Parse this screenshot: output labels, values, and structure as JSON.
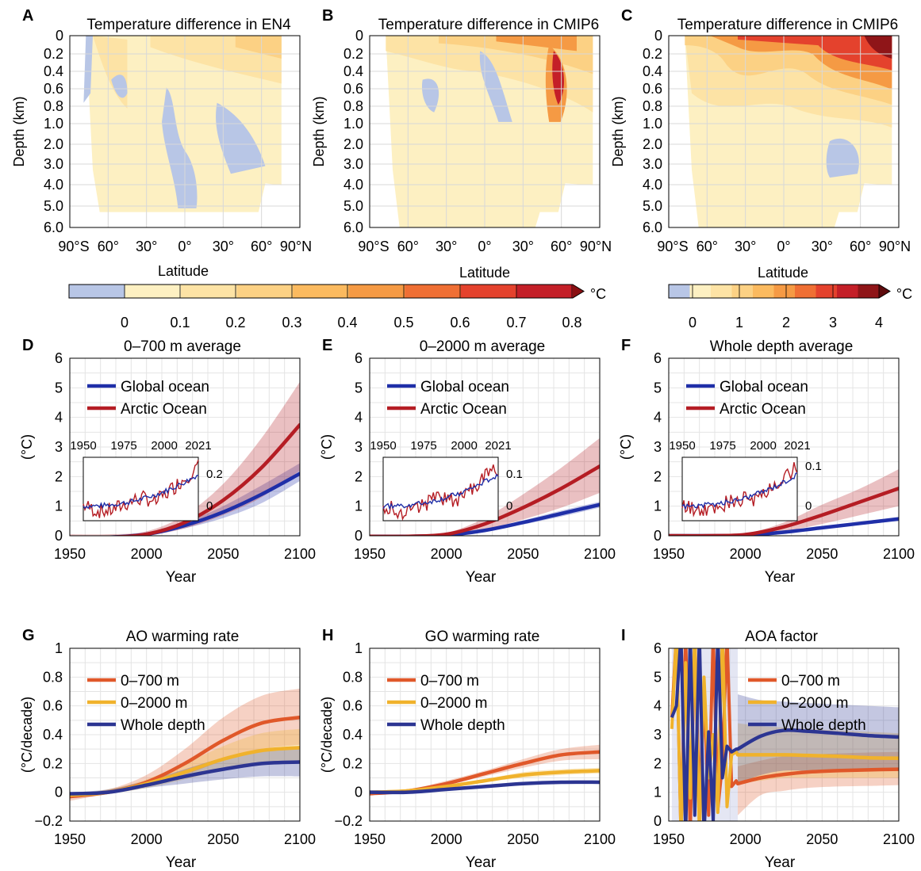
{
  "depth_panels": [
    {
      "letter": "A",
      "title": "Temperature difference in EN4",
      "ylabel": "Depth (km)",
      "xlabel": "Latitude",
      "depth_ticks": [
        "0",
        "0.2",
        "0.4",
        "0.6",
        "0.8",
        "1.0",
        "2.0",
        "3.0",
        "4.0",
        "5.0",
        "6.0"
      ],
      "lat_ticks": [
        "90°S",
        "60°",
        "30°",
        "0°",
        "30°",
        "60°",
        "90°N"
      ]
    },
    {
      "letter": "B",
      "title": "Temperature difference in CMIP6",
      "ylabel": "Depth (km)",
      "xlabel": "Latitude",
      "depth_ticks": [
        "0",
        "0.2",
        "0.4",
        "0.6",
        "0.8",
        "1.0",
        "2.0",
        "3.0",
        "4.0",
        "5.0",
        "6.0"
      ],
      "lat_ticks": [
        "90°S",
        "60°",
        "30°",
        "0°",
        "30°",
        "60°",
        "90°N"
      ]
    },
    {
      "letter": "C",
      "title": "Temperature difference in CMIP6",
      "ylabel": "Depth (km)",
      "xlabel": "Latitude",
      "depth_ticks": [
        "0",
        "0.2",
        "0.4",
        "0.6",
        "0.8",
        "1.0",
        "2.0",
        "3.0",
        "4.0",
        "5.0",
        "6.0"
      ],
      "lat_ticks": [
        "90°S",
        "60°",
        "30°",
        "0°",
        "30°",
        "60°",
        "90°N"
      ]
    }
  ],
  "colorbars": [
    {
      "unit": "°C",
      "ticks": [
        "0",
        "0.1",
        "0.2",
        "0.3",
        "0.4",
        "0.5",
        "0.6",
        "0.7",
        "0.8"
      ],
      "colors": [
        "#b8c6e6",
        "#fdf0c2",
        "#fde3a5",
        "#fcd184",
        "#fbba5f",
        "#f59a44",
        "#ef6f34",
        "#e4422d",
        "#c41f28"
      ],
      "arrow": "#8a0f12"
    },
    {
      "unit": "°C",
      "ticks": [
        "0",
        "1",
        "2",
        "3",
        "4"
      ],
      "colors": [
        "#b8c6e6",
        "#fdf0c2",
        "#fde3a5",
        "#fcd184",
        "#fbba5f",
        "#f59a44",
        "#ef6f34",
        "#e4422d",
        "#c41f28",
        "#8f1518"
      ],
      "arrow": "#5e0b0d"
    }
  ],
  "colors": {
    "global": "#1f2fa8",
    "arctic": "#b51d24",
    "d700": "#e0582a",
    "d2000": "#f0b22c",
    "whole": "#2c3592"
  },
  "chart_data": [
    {
      "type": "line",
      "letter": "D",
      "title": "0–700 m average",
      "xlabel": "Year",
      "ylabel": "(°C)",
      "xlim": [
        1950,
        2100
      ],
      "ylim": [
        0,
        6
      ],
      "xticks": [
        "1950",
        "2000",
        "2050",
        "2100"
      ],
      "yticks": [
        "0",
        "1",
        "2",
        "3",
        "4",
        "5",
        "6"
      ],
      "x": [
        1950,
        1975,
        2000,
        2025,
        2050,
        2075,
        2100
      ],
      "series": [
        {
          "name": "Global ocean",
          "values": [
            -0.05,
            -0.05,
            0.05,
            0.35,
            0.8,
            1.4,
            2.1
          ],
          "lower": [
            -0.08,
            -0.08,
            0.0,
            0.25,
            0.6,
            1.1,
            1.85
          ],
          "upper": [
            0.0,
            0.0,
            0.12,
            0.45,
            1.0,
            1.7,
            2.45
          ]
        },
        {
          "name": "Arctic Ocean",
          "values": [
            -0.05,
            -0.05,
            0.05,
            0.45,
            1.2,
            2.3,
            3.75
          ],
          "lower": [
            -0.1,
            -0.1,
            0.0,
            0.25,
            0.7,
            1.3,
            2.2
          ],
          "upper": [
            0.05,
            0.05,
            0.15,
            0.7,
            1.75,
            3.3,
            5.2
          ]
        }
      ],
      "inset": {
        "xticks": [
          "1950",
          "1975",
          "2000",
          "2021"
        ],
        "yticks": [
          "0.2",
          "0"
        ],
        "ymax": 0.3,
        "ymin": -0.1
      }
    },
    {
      "type": "line",
      "letter": "E",
      "title": "0–2000 m average",
      "xlabel": "Year",
      "ylabel": "(°C)",
      "xlim": [
        1950,
        2100
      ],
      "ylim": [
        0,
        6
      ],
      "xticks": [
        "1950",
        "2000",
        "2050",
        "2100"
      ],
      "yticks": [
        "0",
        "1",
        "2",
        "3",
        "4",
        "5",
        "6"
      ],
      "x": [
        1950,
        1975,
        2000,
        2025,
        2050,
        2075,
        2100
      ],
      "series": [
        {
          "name": "Global ocean",
          "values": [
            -0.02,
            -0.02,
            0.02,
            0.18,
            0.45,
            0.75,
            1.05
          ],
          "lower": [
            -0.04,
            -0.04,
            0.0,
            0.13,
            0.38,
            0.65,
            0.95
          ],
          "upper": [
            0.0,
            0.0,
            0.05,
            0.22,
            0.52,
            0.85,
            1.15
          ]
        },
        {
          "name": "Arctic Ocean",
          "values": [
            -0.02,
            -0.02,
            0.05,
            0.4,
            0.95,
            1.6,
            2.35
          ],
          "lower": [
            -0.04,
            -0.04,
            0.0,
            0.2,
            0.55,
            0.95,
            1.45
          ],
          "upper": [
            0.02,
            0.02,
            0.1,
            0.6,
            1.4,
            2.3,
            3.3
          ]
        }
      ],
      "inset": {
        "xticks": [
          "1950",
          "1975",
          "2000",
          "2021"
        ],
        "yticks": [
          "0.1",
          "0"
        ],
        "ymax": 0.15,
        "ymin": -0.05
      }
    },
    {
      "type": "line",
      "letter": "F",
      "title": "Whole depth average",
      "xlabel": "Year",
      "ylabel": "(°C)",
      "xlim": [
        1950,
        2100
      ],
      "ylim": [
        0,
        6
      ],
      "xticks": [
        "1950",
        "2000",
        "2050",
        "2100"
      ],
      "yticks": [
        "0",
        "1",
        "2",
        "3",
        "4",
        "5",
        "6"
      ],
      "x": [
        1950,
        1975,
        2000,
        2025,
        2050,
        2075,
        2100
      ],
      "series": [
        {
          "name": "Global ocean",
          "values": [
            0.0,
            0.0,
            0.02,
            0.12,
            0.27,
            0.42,
            0.57
          ],
          "lower": [
            -0.01,
            -0.01,
            0.0,
            0.1,
            0.23,
            0.37,
            0.5
          ],
          "upper": [
            0.01,
            0.01,
            0.03,
            0.15,
            0.31,
            0.47,
            0.64
          ]
        },
        {
          "name": "Arctic Ocean",
          "values": [
            0.0,
            0.0,
            0.04,
            0.3,
            0.7,
            1.15,
            1.6
          ],
          "lower": [
            -0.02,
            -0.02,
            0.0,
            0.15,
            0.4,
            0.7,
            1.0
          ],
          "upper": [
            0.02,
            0.02,
            0.08,
            0.45,
            1.05,
            1.6,
            2.25
          ]
        }
      ],
      "inset": {
        "xticks": [
          "1950",
          "1975",
          "2000",
          "2021"
        ],
        "yticks": [
          "0.1",
          "0"
        ],
        "ymax": 0.12,
        "ymin": -0.04
      }
    },
    {
      "type": "line",
      "letter": "G",
      "title": "AO warming rate",
      "xlabel": "Year",
      "ylabel": "(°C/decade)",
      "xlim": [
        1950,
        2100
      ],
      "ylim": [
        -0.2,
        1
      ],
      "xticks": [
        "1950",
        "2000",
        "2050",
        "2100"
      ],
      "yticks": [
        "−0.2",
        "0",
        "0.2",
        "0.4",
        "0.6",
        "0.8",
        "1"
      ],
      "x": [
        1950,
        1975,
        2000,
        2025,
        2050,
        2075,
        2100
      ],
      "series": [
        {
          "name": "0–700 m",
          "values": [
            -0.03,
            0.0,
            0.07,
            0.2,
            0.36,
            0.48,
            0.52
          ],
          "lower": [
            -0.06,
            -0.01,
            0.04,
            0.12,
            0.22,
            0.3,
            0.33
          ],
          "upper": [
            -0.01,
            0.02,
            0.12,
            0.3,
            0.52,
            0.67,
            0.72
          ]
        },
        {
          "name": "0–2000 m",
          "values": [
            -0.02,
            0.0,
            0.06,
            0.14,
            0.23,
            0.29,
            0.31
          ],
          "lower": [
            -0.03,
            -0.01,
            0.03,
            0.09,
            0.15,
            0.19,
            0.2
          ],
          "upper": [
            -0.01,
            0.02,
            0.09,
            0.2,
            0.32,
            0.41,
            0.44
          ]
        },
        {
          "name": "Whole depth",
          "values": [
            -0.01,
            0.0,
            0.05,
            0.11,
            0.16,
            0.2,
            0.21
          ],
          "lower": [
            -0.02,
            -0.01,
            0.03,
            0.06,
            0.09,
            0.11,
            0.11
          ],
          "upper": [
            0.0,
            0.02,
            0.08,
            0.16,
            0.24,
            0.29,
            0.3
          ]
        }
      ]
    },
    {
      "type": "line",
      "letter": "H",
      "title": "GO warming rate",
      "xlabel": "Year",
      "ylabel": "(°C/decade)",
      "xlim": [
        1950,
        2100
      ],
      "ylim": [
        -0.2,
        1
      ],
      "xticks": [
        "1950",
        "2000",
        "2050",
        "2100"
      ],
      "yticks": [
        "−0.2",
        "0",
        "0.2",
        "0.4",
        "0.6",
        "0.8",
        "1"
      ],
      "x": [
        1950,
        1975,
        2000,
        2025,
        2050,
        2075,
        2100
      ],
      "series": [
        {
          "name": "0–700 m",
          "values": [
            -0.01,
            0.01,
            0.06,
            0.13,
            0.2,
            0.26,
            0.28
          ],
          "lower": [
            -0.02,
            0.0,
            0.05,
            0.11,
            0.17,
            0.22,
            0.23
          ],
          "upper": [
            0.0,
            0.02,
            0.08,
            0.15,
            0.23,
            0.3,
            0.33
          ]
        },
        {
          "name": "0–2000 m",
          "values": [
            0.0,
            0.01,
            0.04,
            0.08,
            0.12,
            0.14,
            0.15
          ],
          "lower": [
            -0.01,
            0.0,
            0.03,
            0.07,
            0.1,
            0.12,
            0.13
          ],
          "upper": [
            0.0,
            0.02,
            0.05,
            0.09,
            0.14,
            0.16,
            0.17
          ]
        },
        {
          "name": "Whole depth",
          "values": [
            0.0,
            0.0,
            0.02,
            0.04,
            0.06,
            0.07,
            0.07
          ],
          "lower": [
            0.0,
            0.0,
            0.01,
            0.03,
            0.05,
            0.06,
            0.06
          ],
          "upper": [
            0.0,
            0.01,
            0.03,
            0.05,
            0.07,
            0.08,
            0.08
          ]
        }
      ]
    },
    {
      "type": "line",
      "letter": "I",
      "title": "AOA factor",
      "xlabel": "Year",
      "ylabel": "",
      "xlim": [
        1950,
        2100
      ],
      "ylim": [
        0,
        6
      ],
      "xticks": [
        "1950",
        "2000",
        "2050",
        "2100"
      ],
      "yticks": [
        "0",
        "1",
        "2",
        "3",
        "4",
        "5",
        "6"
      ],
      "x": [
        1995,
        2010,
        2025,
        2040,
        2060,
        2080,
        2100
      ],
      "series": [
        {
          "name": "0–700 m",
          "values": [
            1.3,
            1.5,
            1.62,
            1.7,
            1.75,
            1.78,
            1.8
          ],
          "lower": [
            0.2,
            0.9,
            1.05,
            1.15,
            1.2,
            1.22,
            1.25
          ],
          "upper": [
            1.9,
            2.1,
            2.25,
            2.3,
            2.35,
            2.38,
            2.4
          ]
        },
        {
          "name": "0–2000 m",
          "values": [
            2.3,
            2.3,
            2.3,
            2.28,
            2.25,
            2.2,
            2.18
          ],
          "lower": [
            1.3,
            1.4,
            1.5,
            1.5,
            1.5,
            1.5,
            1.5
          ],
          "upper": [
            3.4,
            3.3,
            3.25,
            3.2,
            3.15,
            3.1,
            3.05
          ]
        },
        {
          "name": "Whole depth",
          "values": [
            2.5,
            2.95,
            3.15,
            3.12,
            3.05,
            2.97,
            2.92
          ],
          "lower": [
            1.3,
            1.6,
            1.75,
            1.75,
            1.75,
            1.75,
            1.75
          ],
          "upper": [
            4.4,
            4.2,
            4.15,
            4.1,
            4.05,
            4.0,
            3.95
          ]
        }
      ]
    }
  ]
}
